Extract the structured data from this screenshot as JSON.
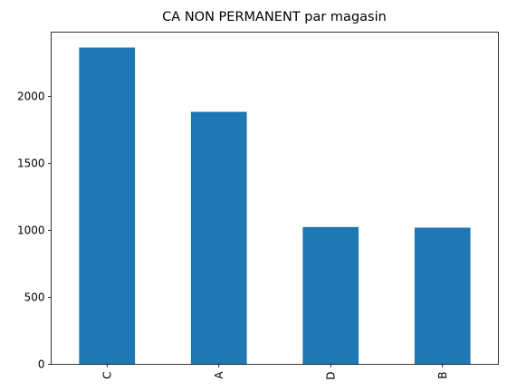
{
  "chart_data": {
    "type": "bar",
    "title": "CA NON PERMANENT par magasin",
    "xlabel": "",
    "ylabel": "",
    "categories": [
      "C",
      "A",
      "D",
      "B"
    ],
    "values": [
      2365,
      1885,
      1025,
      1020
    ],
    "ylim": [
      0,
      2480
    ],
    "yticks": [
      0,
      500,
      1000,
      1500,
      2000
    ],
    "bar_color": "#1f77b4",
    "grid": false,
    "legend": "none"
  }
}
